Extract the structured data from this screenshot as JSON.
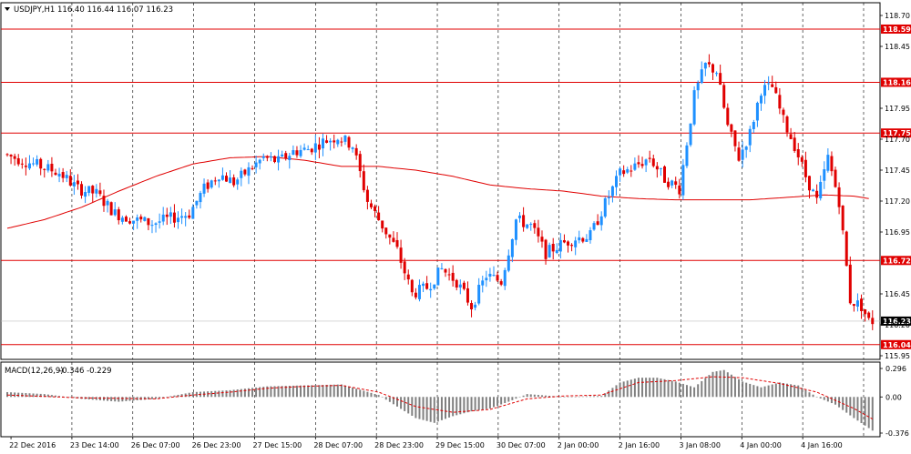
{
  "header": {
    "symbol_tf": "USDJPY,H1",
    "ohlc": "116.40 116.44 116.07 116.23",
    "menu_icon": "triangle-down-icon"
  },
  "macd_header": {
    "name": "MACD(12,26,9)",
    "values": "-0.346 -0.229"
  },
  "colors": {
    "bull": "#1e90ff",
    "bear": "#e00000",
    "ma": "#e00000",
    "hline": "#e00000",
    "grid": "#000000",
    "macd_hist": "#808080",
    "macd_signal": "#e00000",
    "current_tag": "#000000"
  },
  "chart_data": [
    {
      "type": "candlestick",
      "symbol": "USDJPY",
      "timeframe": "H1",
      "ylim": [
        115.95,
        118.7
      ],
      "y_ticks": [
        "118.70",
        "118.45",
        "117.95",
        "117.70",
        "117.45",
        "117.20",
        "116.95",
        "116.45",
        "116.20",
        "115.95"
      ],
      "x_tick_labels": [
        "22 Dec 2016",
        "23 Dec 14:00",
        "26 Dec 07:00",
        "26 Dec 23:00",
        "27 Dec 15:00",
        "28 Dec 07:00",
        "28 Dec 23:00",
        "29 Dec 15:00",
        "30 Dec 07:00",
        "2 Jan 00:00",
        "2 Jan 16:00",
        "3 Jan 08:00",
        "4 Jan 00:00",
        "4 Jan 16:00"
      ],
      "horizontal_levels": [
        "118.59",
        "118.16",
        "117.75",
        "116.72",
        "116.04"
      ],
      "current_price": "116.23",
      "moving_average_path": [
        [
          0,
          116.98
        ],
        [
          10,
          117.05
        ],
        [
          20,
          117.15
        ],
        [
          30,
          117.28
        ],
        [
          40,
          117.4
        ],
        [
          50,
          117.5
        ],
        [
          60,
          117.55
        ],
        [
          70,
          117.56
        ],
        [
          80,
          117.53
        ],
        [
          90,
          117.48
        ],
        [
          100,
          117.48
        ],
        [
          110,
          117.45
        ],
        [
          120,
          117.4
        ],
        [
          130,
          117.33
        ],
        [
          140,
          117.3
        ],
        [
          150,
          117.28
        ],
        [
          160,
          117.24
        ],
        [
          170,
          117.22
        ],
        [
          180,
          117.21
        ],
        [
          190,
          117.21
        ],
        [
          200,
          117.21
        ],
        [
          210,
          117.23
        ],
        [
          220,
          117.25
        ],
        [
          228,
          117.24
        ],
        [
          232,
          117.22
        ]
      ],
      "waypoints": [
        [
          0,
          117.58
        ],
        [
          8,
          117.5
        ],
        [
          15,
          117.43
        ],
        [
          20,
          117.3
        ],
        [
          25,
          117.26
        ],
        [
          30,
          117.1
        ],
        [
          35,
          117.05
        ],
        [
          40,
          117.02
        ],
        [
          45,
          117.06
        ],
        [
          50,
          117.1
        ],
        [
          54,
          117.3
        ],
        [
          58,
          117.42
        ],
        [
          62,
          117.35
        ],
        [
          66,
          117.45
        ],
        [
          70,
          117.55
        ],
        [
          74,
          117.52
        ],
        [
          78,
          117.6
        ],
        [
          82,
          117.62
        ],
        [
          86,
          117.68
        ],
        [
          90,
          117.72
        ],
        [
          94,
          117.65
        ],
        [
          98,
          117.2
        ],
        [
          102,
          117.0
        ],
        [
          106,
          116.8
        ],
        [
          110,
          116.45
        ],
        [
          114,
          116.5
        ],
        [
          118,
          116.65
        ],
        [
          122,
          116.55
        ],
        [
          126,
          116.35
        ],
        [
          130,
          116.6
        ],
        [
          134,
          116.55
        ],
        [
          138,
          117.05
        ],
        [
          142,
          117.0
        ],
        [
          146,
          116.78
        ],
        [
          150,
          116.85
        ],
        [
          154,
          116.9
        ],
        [
          158,
          116.92
        ],
        [
          162,
          117.18
        ],
        [
          166,
          117.42
        ],
        [
          170,
          117.48
        ],
        [
          174,
          117.55
        ],
        [
          178,
          117.38
        ],
        [
          182,
          117.3
        ],
        [
          186,
          118.05
        ],
        [
          189,
          118.3
        ],
        [
          192,
          118.25
        ],
        [
          195,
          117.8
        ],
        [
          198,
          117.55
        ],
        [
          201,
          117.75
        ],
        [
          204,
          118.1
        ],
        [
          207,
          118.12
        ],
        [
          210,
          117.85
        ],
        [
          213,
          117.65
        ],
        [
          216,
          117.4
        ],
        [
          219,
          117.2
        ],
        [
          222,
          117.55
        ],
        [
          225,
          117.2
        ],
        [
          228,
          116.4
        ],
        [
          231,
          116.35
        ],
        [
          233,
          116.23
        ]
      ],
      "macd": {
        "ylim": [
          -0.376,
          0.296
        ],
        "y_ticks": [
          "0.296",
          "0.00",
          "-0.376"
        ],
        "histogram_path": [
          [
            0,
            0.05
          ],
          [
            10,
            0.03
          ],
          [
            20,
            -0.02
          ],
          [
            30,
            -0.05
          ],
          [
            40,
            -0.02
          ],
          [
            50,
            0.05
          ],
          [
            60,
            0.07
          ],
          [
            70,
            0.11
          ],
          [
            80,
            0.12
          ],
          [
            90,
            0.13
          ],
          [
            100,
            0.02
          ],
          [
            105,
            -0.1
          ],
          [
            110,
            -0.22
          ],
          [
            115,
            -0.27
          ],
          [
            120,
            -0.2
          ],
          [
            125,
            -0.15
          ],
          [
            130,
            -0.12
          ],
          [
            135,
            -0.05
          ],
          [
            140,
            0.03
          ],
          [
            150,
            0.0
          ],
          [
            160,
            0.01
          ],
          [
            165,
            0.15
          ],
          [
            170,
            0.2
          ],
          [
            175,
            0.2
          ],
          [
            180,
            0.16
          ],
          [
            185,
            0.1
          ],
          [
            190,
            0.26
          ],
          [
            193,
            0.28
          ],
          [
            198,
            0.16
          ],
          [
            203,
            0.1
          ],
          [
            208,
            0.15
          ],
          [
            213,
            0.12
          ],
          [
            218,
            0.0
          ],
          [
            223,
            -0.08
          ],
          [
            228,
            -0.22
          ],
          [
            233,
            -0.35
          ]
        ],
        "signal_path": [
          [
            0,
            0.02
          ],
          [
            20,
            -0.01
          ],
          [
            40,
            -0.02
          ],
          [
            50,
            0.02
          ],
          [
            60,
            0.05
          ],
          [
            70,
            0.09
          ],
          [
            80,
            0.11
          ],
          [
            90,
            0.12
          ],
          [
            100,
            0.05
          ],
          [
            110,
            -0.1
          ],
          [
            120,
            -0.16
          ],
          [
            130,
            -0.13
          ],
          [
            140,
            -0.02
          ],
          [
            150,
            0.01
          ],
          [
            160,
            0.02
          ],
          [
            170,
            0.15
          ],
          [
            180,
            0.17
          ],
          [
            190,
            0.21
          ],
          [
            198,
            0.2
          ],
          [
            208,
            0.14
          ],
          [
            218,
            0.05
          ],
          [
            228,
            -0.12
          ],
          [
            233,
            -0.23
          ]
        ]
      }
    }
  ]
}
